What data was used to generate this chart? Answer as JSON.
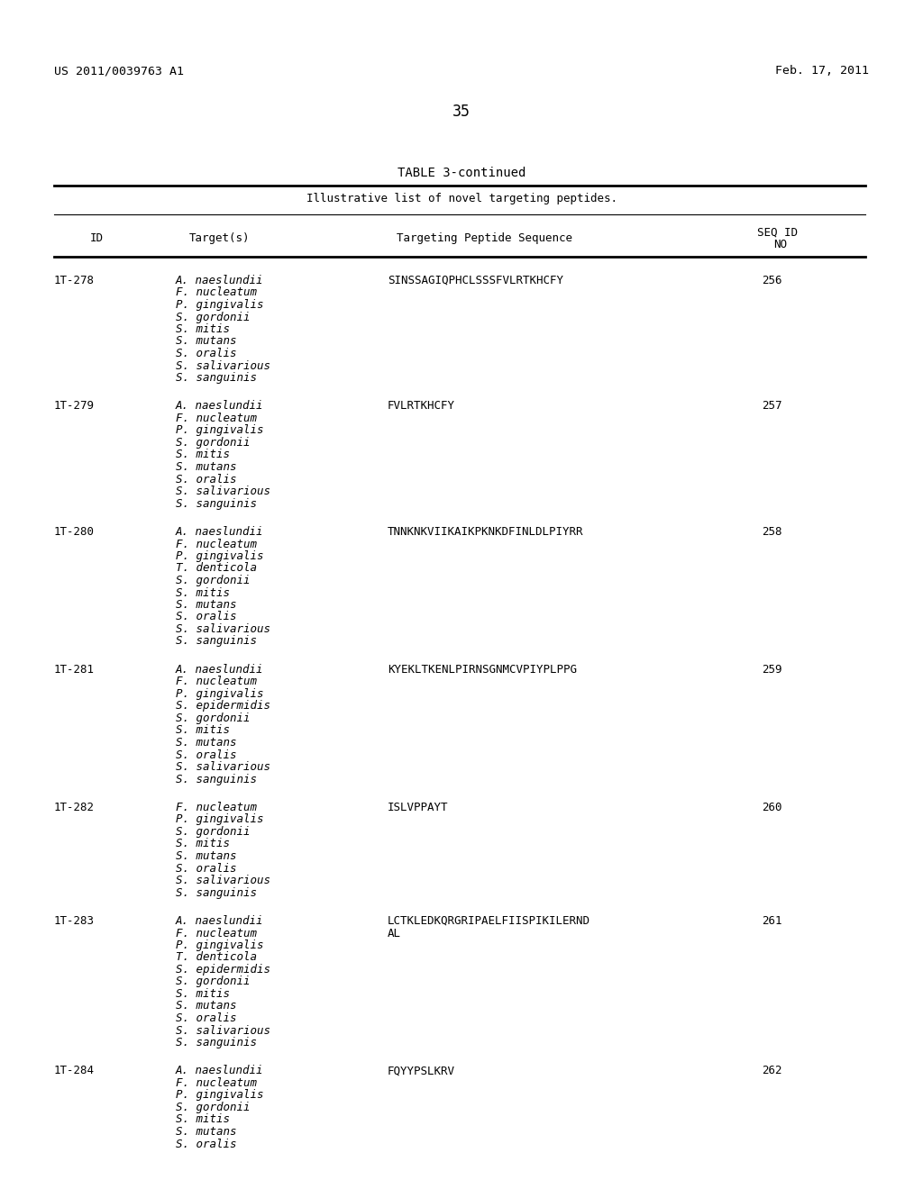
{
  "background_color": "#ffffff",
  "header_left": "US 2011/0039763 A1",
  "header_right": "Feb. 17, 2011",
  "page_number": "35",
  "table_title": "TABLE 3-continued",
  "table_subtitle": "Illustrative list of novel targeting peptides.",
  "col_headers": [
    "ID",
    "Target(s)",
    "Targeting Peptide Sequence",
    "SEQ ID\nNO"
  ],
  "entries": [
    {
      "id": "1T-278",
      "targets": [
        "A. naeslundii",
        "F. nucleatum",
        "P. gingivalis",
        "S. gordonii",
        "S. mitis",
        "S. mutans",
        "S. oralis",
        "S. salivarious",
        "S. sanguinis"
      ],
      "sequence": "SINSSAGIQPHCLSSSFVLRTKHCFY",
      "seq_id": "256"
    },
    {
      "id": "1T-279",
      "targets": [
        "A. naeslundii",
        "F. nucleatum",
        "P. gingivalis",
        "S. gordonii",
        "S. mitis",
        "S. mutans",
        "S. oralis",
        "S. salivarious",
        "S. sanguinis"
      ],
      "sequence": "FVLRTKHCFY",
      "seq_id": "257"
    },
    {
      "id": "1T-280",
      "targets": [
        "A. naeslundii",
        "F. nucleatum",
        "P. gingivalis",
        "T. denticola",
        "S. gordonii",
        "S. mitis",
        "S. mutans",
        "S. oralis",
        "S. salivarious",
        "S. sanguinis"
      ],
      "sequence": "TNNKNKVIIKAIKPKNKDFINLDLPIYRR",
      "seq_id": "258"
    },
    {
      "id": "1T-281",
      "targets": [
        "A. naeslundii",
        "F. nucleatum",
        "P. gingivalis",
        "S. epidermidis",
        "S. gordonii",
        "S. mitis",
        "S. mutans",
        "S. oralis",
        "S. salivarious",
        "S. sanguinis"
      ],
      "sequence": "KYEKLTKENLPIRNSGNMCVPIYPLPPG",
      "seq_id": "259"
    },
    {
      "id": "1T-282",
      "targets": [
        "F. nucleatum",
        "P. gingivalis",
        "S. gordonii",
        "S. mitis",
        "S. mutans",
        "S. oralis",
        "S. salivarious",
        "S. sanguinis"
      ],
      "sequence": "ISLVPPAYT",
      "seq_id": "260"
    },
    {
      "id": "1T-283",
      "targets": [
        "A. naeslundii",
        "F. nucleatum",
        "P. gingivalis",
        "T. denticola",
        "S. epidermidis",
        "S. gordonii",
        "S. mitis",
        "S. mutans",
        "S. oralis",
        "S. salivarious",
        "S. sanguinis"
      ],
      "sequence": "LCTKLEDKQRGRIPAELFIISPIKILERND\nAL",
      "seq_id": "261"
    },
    {
      "id": "1T-284",
      "targets": [
        "A. naeslundii",
        "F. nucleatum",
        "P. gingivalis",
        "S. gordonii",
        "S. mitis",
        "S. mutans",
        "S. oralis"
      ],
      "sequence": "FQYYPSLKRV",
      "seq_id": "262"
    }
  ]
}
